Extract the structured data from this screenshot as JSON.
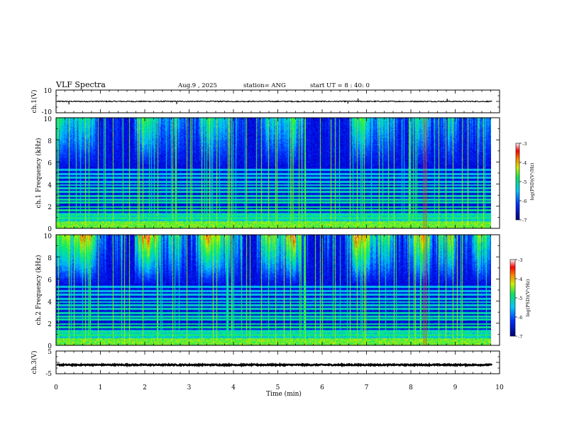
{
  "header": {
    "title": "VLF Spectra",
    "date": "Aug.9 , 2025",
    "station": "station= ANG",
    "start": "start UT = 8 : 40: 0"
  },
  "chart_data": {
    "type": "heatmap",
    "x_label": "Time (min)",
    "x_range": [
      0,
      10
    ],
    "x_ticks": [
      "0",
      "1",
      "2",
      "3",
      "4",
      "5",
      "6",
      "7",
      "8",
      "9",
      "10"
    ],
    "data_end_min": 9.83,
    "panels": [
      {
        "name": "ch.1 waveform",
        "ylabel": "ch.1(V)",
        "ylim": [
          -10,
          10
        ],
        "y_ticks": [
          "10",
          "-10"
        ],
        "trace_level": 0,
        "spikes": [
          {
            "t": 0.29,
            "v": -2.6
          },
          {
            "t": 2.72,
            "v": -2.4
          },
          {
            "t": 6.58,
            "v": -2.0
          },
          {
            "t": 6.81,
            "v": 2.6
          },
          {
            "t": 8.82,
            "v": 2.4
          }
        ]
      },
      {
        "name": "ch.1 spectrogram",
        "ylabel": "ch.1 Frequency (kHz)",
        "ylim": [
          0,
          10
        ],
        "y_ticks": [
          "0",
          "2",
          "4",
          "6",
          "8",
          "10"
        ],
        "colorbar": {
          "label": "log(PSD)(V²/Hz)",
          "range": [
            -7,
            -3
          ],
          "ticks": [
            "-3",
            "-4",
            "-5",
            "-6",
            "-7"
          ]
        }
      },
      {
        "name": "ch.2 spectrogram",
        "ylabel": "ch.2 Frequency (kHz)",
        "ylim": [
          0,
          10
        ],
        "y_ticks": [
          "0",
          "2",
          "4",
          "6",
          "8",
          "10"
        ],
        "colorbar": {
          "label": "log(PSD)(V²/Hz)",
          "range": [
            -7,
            -3
          ],
          "ticks": [
            "-3",
            "-4",
            "-5",
            "-6",
            "-7"
          ]
        }
      },
      {
        "name": "ch.3 waveform",
        "ylabel": "ch.3(V)",
        "ylim": [
          -5,
          5
        ],
        "y_ticks": [
          "5",
          "-5"
        ],
        "trace_level": -1.1
      }
    ],
    "harmonic_lines_khz": [
      0.4,
      0.9,
      1.2,
      1.6,
      1.9,
      2.3,
      2.6,
      2.9,
      3.3,
      3.6,
      3.9,
      4.2,
      4.6,
      4.9,
      5.3
    ],
    "strong_vertical_lines_min": [
      0.05,
      0.28,
      0.65,
      0.95,
      1.28,
      1.65,
      1.95,
      2.28,
      2.62,
      2.95,
      3.28,
      3.62,
      3.95,
      4.28,
      4.62,
      4.95,
      5.28,
      5.62,
      5.95,
      6.28,
      6.62,
      6.78,
      6.95,
      7.28,
      7.62,
      7.95,
      8.28,
      8.33,
      8.62,
      8.78,
      8.95,
      9.15,
      9.5
    ]
  }
}
